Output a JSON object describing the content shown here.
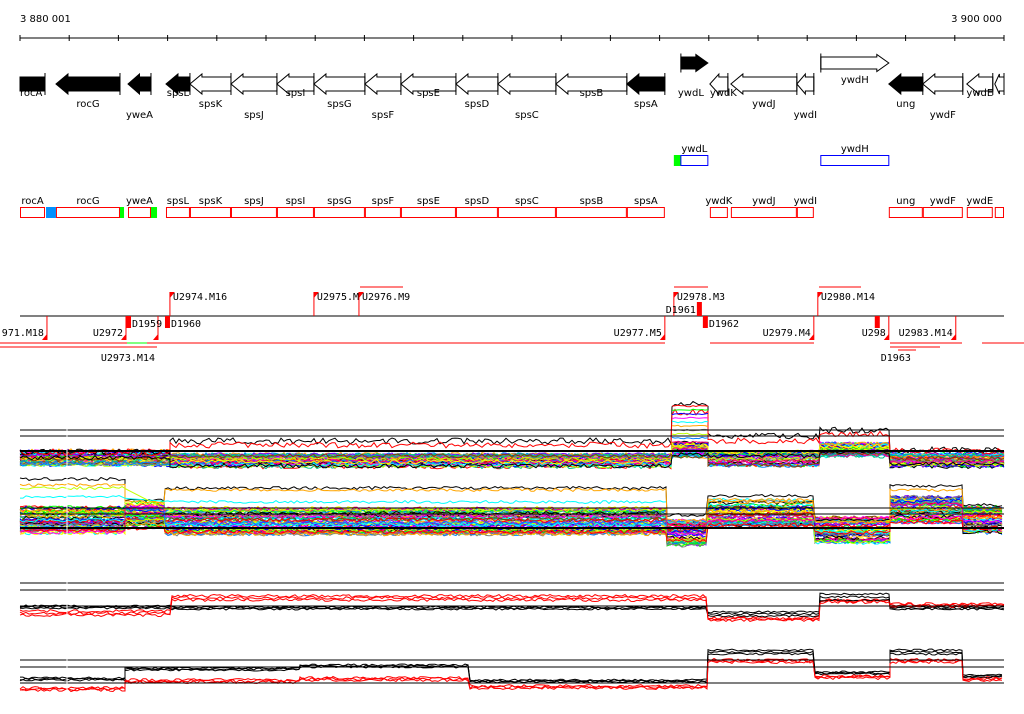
{
  "ruler": {
    "start_label": "3 880 001",
    "end_label": "3 900 000",
    "start_bp": 3880001,
    "end_bp": 3900000
  },
  "genes": [
    {
      "name": "rocA",
      "start": 3880001,
      "end": 3880509,
      "strand": "-",
      "fill": "black"
    },
    {
      "name": "rocG",
      "start": 3880732,
      "end": 3882033,
      "strand": "-",
      "fill": "black"
    },
    {
      "name": "yweA",
      "start": 3882196,
      "end": 3882663,
      "strand": "-",
      "fill": "black"
    },
    {
      "name": "spsL",
      "start": 3882968,
      "end": 3883455,
      "strand": "-",
      "fill": "black"
    },
    {
      "name": "spsK",
      "start": 3883455,
      "end": 3884289,
      "strand": "-",
      "fill": "white"
    },
    {
      "name": "spsJ",
      "start": 3884289,
      "end": 3885223,
      "strand": "-",
      "fill": "white"
    },
    {
      "name": "spsI",
      "start": 3885223,
      "end": 3885975,
      "strand": "-",
      "fill": "white"
    },
    {
      "name": "spsG",
      "start": 3885975,
      "end": 3887011,
      "strand": "-",
      "fill": "white"
    },
    {
      "name": "spsF",
      "start": 3887011,
      "end": 3887743,
      "strand": "-",
      "fill": "white"
    },
    {
      "name": "spsE",
      "start": 3887743,
      "end": 3888861,
      "strand": "-",
      "fill": "white"
    },
    {
      "name": "spsD",
      "start": 3888861,
      "end": 3889714,
      "strand": "-",
      "fill": "white"
    },
    {
      "name": "spsC",
      "start": 3889714,
      "end": 3890893,
      "strand": "-",
      "fill": "white"
    },
    {
      "name": "spsB",
      "start": 3890893,
      "end": 3892335,
      "strand": "-",
      "fill": "white"
    },
    {
      "name": "spsA",
      "start": 3892335,
      "end": 3893107,
      "strand": "-",
      "fill": "black"
    },
    {
      "name": "ywdL",
      "start": 3893433,
      "end": 3893981,
      "strand": "+",
      "fill": "black"
    },
    {
      "name": "ywdK",
      "start": 3894022,
      "end": 3894388,
      "strand": "-",
      "fill": "white"
    },
    {
      "name": "ywdJ",
      "start": 3894449,
      "end": 3895790,
      "strand": "-",
      "fill": "white"
    },
    {
      "name": "ywdI",
      "start": 3895790,
      "end": 3896135,
      "strand": "-",
      "fill": "white"
    },
    {
      "name": "ywdH",
      "start": 3896277,
      "end": 3897659,
      "strand": "+",
      "fill": "white"
    },
    {
      "name": "ung",
      "start": 3897659,
      "end": 3898350,
      "strand": "-",
      "fill": "black"
    },
    {
      "name": "ywdF",
      "start": 3898350,
      "end": 3899163,
      "strand": "-",
      "fill": "white"
    },
    {
      "name": "ywdE",
      "start": 3899244,
      "end": 3899772,
      "strand": "-",
      "fill": "white"
    },
    {
      "name": "",
      "start": 3899813,
      "end": 3900000,
      "strand": "-",
      "fill": "white"
    }
  ],
  "plus_track": [
    {
      "name": "ywdL",
      "start": 3893433,
      "end": 3893981,
      "marker": {
        "start": 3893290,
        "end": 3893433,
        "color": "#00ff00"
      }
    },
    {
      "name": "ywdH",
      "start": 3896277,
      "end": 3897659
    }
  ],
  "minus_track": [
    {
      "name": "rocA",
      "start": 3880001,
      "end": 3880509
    },
    {
      "name": "rocG",
      "start": 3880732,
      "end": 3882033
    },
    {
      "name": "yweA",
      "start": 3882196,
      "end": 3882663
    },
    {
      "name": "spsL",
      "start": 3882968,
      "end": 3883455
    },
    {
      "name": "spsK",
      "start": 3883455,
      "end": 3884289
    },
    {
      "name": "spsJ",
      "start": 3884289,
      "end": 3885223
    },
    {
      "name": "spsI",
      "start": 3885223,
      "end": 3885975
    },
    {
      "name": "spsG",
      "start": 3885975,
      "end": 3887011
    },
    {
      "name": "spsF",
      "start": 3887011,
      "end": 3887743
    },
    {
      "name": "spsE",
      "start": 3887743,
      "end": 3888861
    },
    {
      "name": "spsD",
      "start": 3888861,
      "end": 3889714
    },
    {
      "name": "spsC",
      "start": 3889714,
      "end": 3890893
    },
    {
      "name": "spsB",
      "start": 3890893,
      "end": 3892335
    },
    {
      "name": "spsA",
      "start": 3892335,
      "end": 3893107
    },
    {
      "name": "ywdK",
      "start": 3894022,
      "end": 3894388
    },
    {
      "name": "ywdJ",
      "start": 3894449,
      "end": 3895790
    },
    {
      "name": "ywdI",
      "start": 3895790,
      "end": 3896135
    },
    {
      "name": "ung",
      "start": 3897659,
      "end": 3898350
    },
    {
      "name": "ywdF",
      "start": 3898350,
      "end": 3899163
    },
    {
      "name": "ywdE",
      "start": 3899244,
      "end": 3899772
    },
    {
      "name": "",
      "start": 3899813,
      "end": 3900000
    }
  ],
  "minus_markers": [
    {
      "start": 3880530,
      "end": 3880732,
      "color": "#0090ff"
    },
    {
      "start": 3882013,
      "end": 3882115,
      "color": "#00ff00"
    },
    {
      "start": 3882643,
      "end": 3882786,
      "color": "#00ff00"
    }
  ],
  "upper_features": [
    {
      "label": "U2974.M16",
      "pos": 3883048
    },
    {
      "label": "U2975.M",
      "pos": 3885975
    },
    {
      "label": "U2976.M9",
      "pos": 3886890
    },
    {
      "label": "U2978.M3",
      "pos": 3893290
    },
    {
      "label": "U2980.M14",
      "pos": 3896216
    }
  ],
  "lower_features": [
    {
      "label": "971.M18",
      "pos": 3880549
    },
    {
      "label": "U2972",
      "pos": 3882155
    },
    {
      "label": "U2973.M14",
      "pos": 3882806
    },
    {
      "label": "U2977.M5",
      "pos": 3893107
    },
    {
      "label": "U2979.M4",
      "pos": 3896135
    },
    {
      "label": "U298",
      "pos": 3897659
    },
    {
      "label": "U2983.M14",
      "pos": 3899020
    }
  ],
  "promoters": [
    {
      "label": "D1959",
      "pos": 3882176,
      "side": "below"
    },
    {
      "label": "D1960",
      "pos": 3882968,
      "side": "below"
    },
    {
      "label": "D1961",
      "pos": 3893819,
      "side": "above"
    },
    {
      "label": "D1962",
      "pos": 3893900,
      "side": "below"
    },
    {
      "label": "D1963",
      "pos": 3897394,
      "side": "below"
    }
  ],
  "colors": {
    "gene_box": "#ff0000",
    "plus_box": "#0000ff",
    "feature": "#ff0000",
    "axis": "#000000"
  },
  "panels": [
    "expression-panel-1",
    "expression-panel-2",
    "expression-panel-3",
    "expression-panel-4"
  ]
}
